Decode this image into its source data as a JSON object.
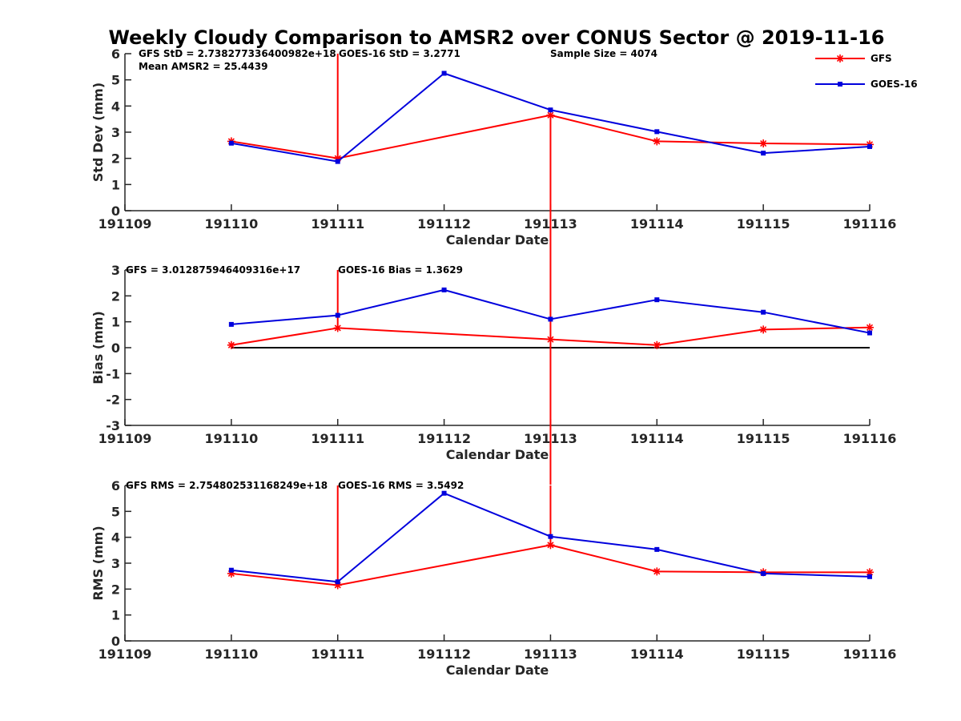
{
  "chart_data": {
    "type": "line",
    "title": "Weekly Cloudy Comparison to AMSR2 over CONUS Sector @ 2019-11-16",
    "colors": {
      "GFS": "#ff0000",
      "GOES-16": "#0000dd",
      "zero_line": "#000000"
    },
    "legend": {
      "placement": "top-right",
      "entries": [
        {
          "name": "GFS",
          "marker": "asterisk"
        },
        {
          "name": "GOES-16",
          "marker": "square"
        }
      ]
    },
    "x_ticks": [
      "191109",
      "191110",
      "191111",
      "191112",
      "191113",
      "191114",
      "191115",
      "191116"
    ],
    "panels": [
      {
        "id": "std",
        "ylabel": "Std Dev (mm)",
        "xlabel": "Calendar Date",
        "ylim": [
          0,
          6
        ],
        "y_ticks": [
          "0",
          "1",
          "2",
          "3",
          "4",
          "5",
          "6"
        ],
        "annotations": [
          "GFS StD = 2.738277336400982e+18",
          "GOES-16 StD = 3.2771",
          "Sample Size = 4074",
          "Mean AMSR2 = 25.4439"
        ],
        "series": [
          {
            "name": "GFS",
            "x": [
              1,
              2,
              4,
              5,
              6,
              7
            ],
            "values": [
              2.65,
              2.0,
              3.65,
              2.65,
              2.57,
              2.53
            ],
            "spike_up_at": [
              2
            ],
            "spike_down_at": [
              4
            ]
          },
          {
            "name": "GOES-16",
            "x": [
              1,
              2,
              3,
              4,
              5,
              6,
              7
            ],
            "values": [
              2.58,
              1.88,
              5.25,
              3.85,
              3.02,
              2.2,
              2.45
            ]
          }
        ]
      },
      {
        "id": "bias",
        "ylabel": "Bias (mm)",
        "xlabel": "Calendar Date",
        "ylim": [
          -3,
          3
        ],
        "y_ticks": [
          "-3",
          "-2",
          "-1",
          "0",
          "1",
          "2",
          "3"
        ],
        "zero_line": true,
        "annotations": [
          "GFS = 3.012875946409316e+17",
          "GOES-16 Bias  = 1.3629"
        ],
        "series": [
          {
            "name": "GFS",
            "x": [
              1,
              2,
              4,
              5,
              6,
              7
            ],
            "values": [
              0.1,
              0.76,
              0.32,
              0.1,
              0.7,
              0.78
            ],
            "spike_up_at": [
              2,
              4
            ],
            "spike_down_at": [
              4
            ]
          },
          {
            "name": "GOES-16",
            "x": [
              1,
              2,
              3,
              4,
              5,
              6,
              7
            ],
            "values": [
              0.9,
              1.25,
              2.23,
              1.1,
              1.85,
              1.37,
              0.57
            ]
          }
        ]
      },
      {
        "id": "rms",
        "ylabel": "RMS (mm)",
        "xlabel": "Calendar Date",
        "ylim": [
          0,
          6
        ],
        "y_ticks": [
          "0",
          "1",
          "2",
          "3",
          "4",
          "5",
          "6"
        ],
        "annotations": [
          "GFS RMS = 2.754802531168249e+18",
          "GOES-16 RMS = 3.5492"
        ],
        "series": [
          {
            "name": "GFS",
            "x": [
              1,
              2,
              4,
              5,
              6,
              7
            ],
            "values": [
              2.6,
              2.15,
              3.7,
              2.68,
              2.65,
              2.65
            ],
            "spike_up_at": [
              2,
              4
            ]
          },
          {
            "name": "GOES-16",
            "x": [
              1,
              2,
              3,
              4,
              5,
              6,
              7
            ],
            "values": [
              2.73,
              2.28,
              5.7,
              4.03,
              3.53,
              2.6,
              2.48
            ]
          }
        ]
      }
    ]
  }
}
